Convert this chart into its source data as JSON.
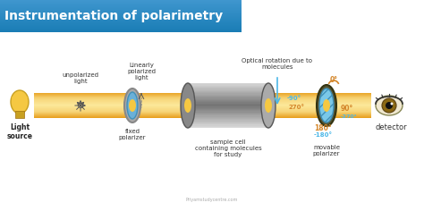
{
  "title": "Instrumentation of polarimetry",
  "title_bg": "#1a7db5",
  "title_color": "#ffffff",
  "beam_color": "#f5c842",
  "beam_alpha": 0.7,
  "bg_color": "#ffffff",
  "labels": {
    "light_source": "Light\nsource",
    "unpolarized": "unpolarized\nlight",
    "linearly": "Linearly\npolarized\nlight",
    "fixed_pol": "fixed\npolarizer",
    "sample_cell": "sample cell\ncontaining molecules\nfor study",
    "optical_rot": "Optical rotation due to\nmolecules",
    "movable_pol": "movable\npolarizer",
    "detector": "detector",
    "deg_0": "0°",
    "deg_90": "90°",
    "deg_180": "180°",
    "deg_m90": "-90°",
    "deg_270": "270°",
    "deg_m270": "-270°",
    "deg_m180": "-180°"
  },
  "colors": {
    "orange": "#d4862a",
    "blue_light": "#4db8e8",
    "cyan": "#00bcd4",
    "dark_text": "#333333",
    "arrow_blue": "#4db8e8"
  },
  "watermark": "Priyamstudycentre.com"
}
